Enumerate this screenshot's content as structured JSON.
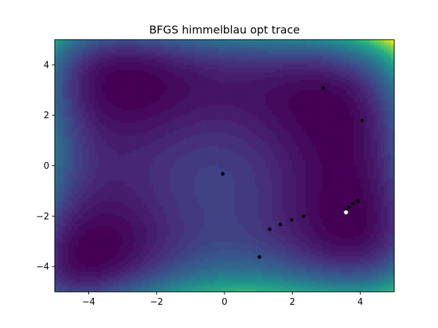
{
  "chart_data": {
    "type": "contour",
    "title": "BFGS himmelblau opt trace",
    "xlabel": "",
    "ylabel": "",
    "xlim": [
      -5,
      5
    ],
    "ylim": [
      -5,
      5
    ],
    "x_ticks": [
      -4,
      -2,
      0,
      2,
      4
    ],
    "y_ticks": [
      -4,
      -2,
      0,
      2,
      4
    ],
    "x_tick_labels": [
      "−4",
      "−2",
      "0",
      "2",
      "4"
    ],
    "y_tick_labels": [
      "−4",
      "−2",
      "0",
      "2",
      "4"
    ],
    "grid": false,
    "colormap": "viridis",
    "surface": "himmelblau",
    "trace_points": [
      {
        "x": -0.05,
        "y": -0.32
      },
      {
        "x": 2.92,
        "y": 3.08
      },
      {
        "x": 4.05,
        "y": 1.79
      },
      {
        "x": 1.03,
        "y": -3.62
      },
      {
        "x": 1.33,
        "y": -2.52
      },
      {
        "x": 1.65,
        "y": -2.33
      },
      {
        "x": 1.98,
        "y": -2.15
      },
      {
        "x": 2.33,
        "y": -2.0
      },
      {
        "x": 3.93,
        "y": -1.4
      },
      {
        "x": 3.78,
        "y": -1.5
      },
      {
        "x": 3.66,
        "y": -1.64
      },
      {
        "x": 3.6,
        "y": -1.78
      }
    ],
    "final_point": {
      "x": 3.58,
      "y": -1.85
    },
    "colors": {
      "trace": "#000000",
      "final": "#ffffff"
    }
  }
}
